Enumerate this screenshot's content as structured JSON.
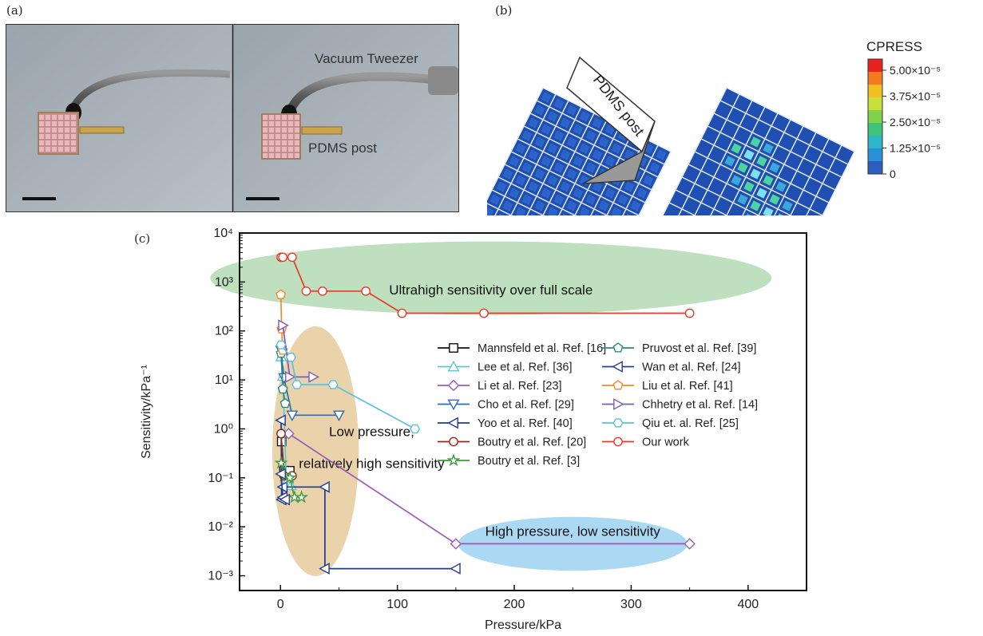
{
  "panels": {
    "a_label": "(a)",
    "b_label": "(b)",
    "c_label": "(c)"
  },
  "photo": {
    "tweezer_label": "Vacuum Tweezer",
    "post_label": "PDMS post"
  },
  "simulation": {
    "post_label": "PDMS post",
    "colorbar_title": "CPRESS",
    "colorbar_ticks": [
      "5.00×10⁻⁵",
      "3.75×10⁻⁵",
      "2.50×10⁻⁵",
      "1.25×10⁻⁵",
      "0"
    ],
    "colorbar_colors": [
      "#e8231f",
      "#f47a1f",
      "#f0c020",
      "#c8e03a",
      "#7fd24a",
      "#3fc27a",
      "#2eb7c8",
      "#2a90d8",
      "#2a5fc0"
    ]
  },
  "chart_data": {
    "type": "line",
    "xlabel": "Pressure/kPa",
    "ylabel": "Sensitivity/kPa⁻¹",
    "xlim": [
      -35,
      450
    ],
    "ylim": [
      0.0005,
      10000
    ],
    "yscale": "log",
    "xticks": [
      0,
      100,
      200,
      300,
      400
    ],
    "xtick_labels": [
      "0",
      "100",
      "200",
      "300",
      "400"
    ],
    "yticks": [
      0.001,
      0.01,
      0.1,
      1,
      10,
      100,
      1000,
      10000
    ],
    "ytick_labels": [
      "10⁻³",
      "10⁻²",
      "10⁻¹",
      "10⁰",
      "10¹",
      "10²",
      "10³",
      "10⁴"
    ],
    "grid": false,
    "legend_position": "right",
    "regions": [
      {
        "label": "Ultrahigh sensitivity over full scale",
        "color": "#a8d5a8",
        "cx": 180,
        "cy": 1200,
        "x_radius": 240,
        "y_decades": 0.75
      },
      {
        "label": "Low pressure,",
        "label2": "relatively high sensitivity",
        "color": "#e3c48e",
        "cx": 30,
        "cy": 0.35,
        "x_radius": 37,
        "y_decades": 2.55
      },
      {
        "label": "High pressure, low sensitivity",
        "color": "#8fcbef",
        "cx": 250,
        "cy": 0.0045,
        "x_radius": 98,
        "y_decades": 0.55
      }
    ],
    "series": [
      {
        "name": "Mannsfeld et al. Ref. [16]",
        "color": "#111111",
        "marker": "square",
        "x": [
          1,
          3,
          8
        ],
        "y": [
          0.55,
          0.14,
          0.14
        ]
      },
      {
        "name": "Lee et al. Ref. [36]",
        "color": "#5ec8d2",
        "marker": "triangle-up",
        "x": [
          0.5,
          2,
          5,
          9
        ],
        "y": [
          30,
          12,
          0.08,
          0.07
        ]
      },
      {
        "name": "Li et al. Ref. [23]",
        "color": "#9b59b6",
        "marker": "diamond",
        "x": [
          1,
          7,
          150,
          350
        ],
        "y": [
          0.8,
          0.8,
          0.0045,
          0.0045
        ]
      },
      {
        "name": "Cho et al. Ref. [29]",
        "color": "#2e6db4",
        "marker": "triangle-down",
        "x": [
          0.5,
          3,
          10,
          50
        ],
        "y": [
          40,
          11,
          1.9,
          1.9
        ]
      },
      {
        "name": "Yoo et al. Ref. [40]",
        "color": "#1f3a93",
        "marker": "triangle-left",
        "x": [
          0.5,
          1,
          2,
          38,
          38,
          150
        ],
        "y": [
          1.5,
          0.036,
          0.065,
          0.065,
          0.0014,
          0.0014
        ]
      },
      {
        "name": "Boutry et al. Ref. [20]",
        "color": "#8b2f1e",
        "marker": "circle",
        "x": [
          0.5,
          3,
          10
        ],
        "y": [
          0.8,
          0.11,
          0.11
        ]
      },
      {
        "name": "Boutry et al. Ref. [3]",
        "color": "#3e9a3e",
        "marker": "star",
        "x": [
          0.5,
          3,
          8,
          12,
          18
        ],
        "y": [
          0.2,
          0.11,
          0.1,
          0.04,
          0.04
        ]
      },
      {
        "name": "Pruvost et al. Ref. [39]",
        "color": "#2a8a82",
        "marker": "pentagon",
        "x": [
          0.5,
          2,
          4
        ],
        "y": [
          35,
          6.5,
          3.3
        ]
      },
      {
        "name": "Wan et al. Ref. [24]",
        "color": "#2b3d8f",
        "marker": "triangle-left",
        "x": [
          0.5,
          2,
          4
        ],
        "y": [
          0.12,
          0.04,
          0.036
        ]
      },
      {
        "name": "Liu et al. Ref. [41]",
        "color": "#ef8a2a",
        "marker": "pentagon",
        "x": [
          0.3,
          1,
          2
        ],
        "y": [
          550,
          110,
          40
        ]
      },
      {
        "name": "Chhetry et al. Ref. [14]",
        "color": "#7b5cb8",
        "marker": "triangle-right",
        "x": [
          2,
          8,
          28
        ],
        "y": [
          130,
          11.5,
          11.5
        ]
      },
      {
        "name": "Qiu et. al. Ref. [25]",
        "color": "#58c1de",
        "marker": "hexagon",
        "x": [
          0.5,
          9,
          14,
          45,
          115
        ],
        "y": [
          52,
          29,
          8,
          8,
          1
        ]
      },
      {
        "name": "Our work",
        "color": "#e83a2a",
        "marker": "circle",
        "x": [
          0.5,
          2,
          10,
          22,
          36,
          73,
          104,
          174,
          350
        ],
        "y": [
          3200,
          3200,
          3200,
          650,
          650,
          650,
          230,
          230,
          230
        ]
      }
    ]
  }
}
